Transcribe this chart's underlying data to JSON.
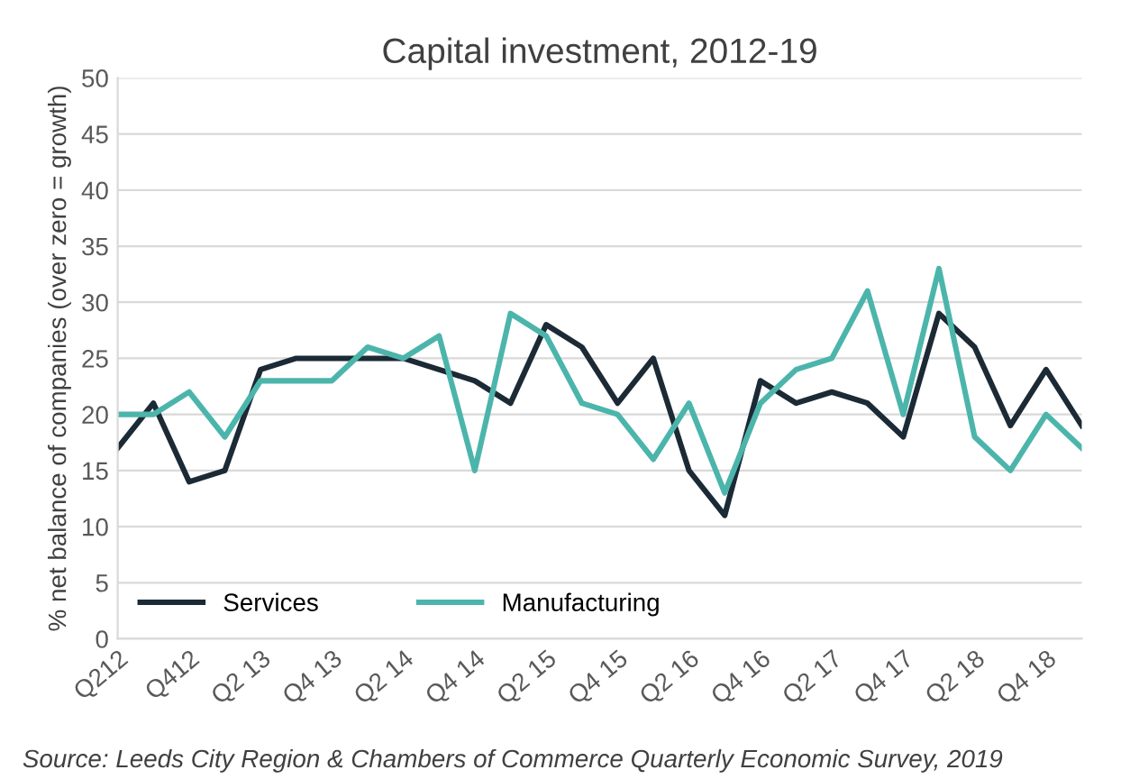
{
  "chart_data": {
    "type": "line",
    "title": "Capital investment, 2012-19",
    "ylabel": "% net balance of companies (over zero = growth)",
    "categories": [
      "Q212",
      null,
      "Q412",
      null,
      "Q2 13",
      null,
      "Q4 13",
      null,
      "Q2 14",
      null,
      "Q4 14",
      null,
      "Q2 15",
      null,
      "Q4 15",
      null,
      "Q2 16",
      null,
      "Q4 16",
      null,
      "Q2 17",
      null,
      "Q4 17",
      null,
      "Q2 18",
      null,
      "Q4 18",
      null
    ],
    "series": [
      {
        "name": "Services",
        "color": "#1b2a35",
        "values": [
          17,
          21,
          14,
          15,
          24,
          25,
          25,
          25,
          25,
          24,
          23,
          21,
          28,
          26,
          21,
          25,
          15,
          11,
          23,
          21,
          22,
          21,
          18,
          29,
          26,
          19,
          24,
          19
        ]
      },
      {
        "name": "Manufacturing",
        "color": "#4cb5ab",
        "values": [
          20,
          20,
          22,
          18,
          23,
          23,
          23,
          26,
          25,
          27,
          15,
          29,
          27,
          21,
          20,
          16,
          21,
          13,
          21,
          24,
          25,
          31,
          20,
          33,
          18,
          15,
          20,
          17
        ]
      }
    ],
    "ylim": [
      0,
      50
    ],
    "yticks": [
      0,
      5,
      10,
      15,
      20,
      25,
      30,
      35,
      40,
      45,
      50
    ],
    "grid": "y",
    "legend": "bottom left",
    "marker": "none",
    "line_style": "solid",
    "annotations": [
      "Source: Leeds City Region & Chambers of Commerce Quarterly Economic Survey, 2019"
    ]
  }
}
